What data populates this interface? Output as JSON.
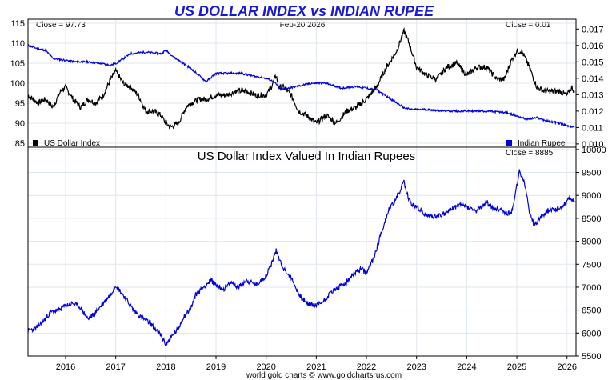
{
  "chart_data": [
    {
      "type": "line",
      "title": "US DOLLAR INDEX vs INDIAN RUPEE",
      "date_label": "Feb-20  2026",
      "left_close": "Close = 97.73",
      "right_close": "Close = 0.01",
      "left_axis": {
        "min": 84,
        "max": 116,
        "ticks": [
          85,
          90,
          95,
          100,
          105,
          110,
          115
        ]
      },
      "right_axis": {
        "min": 0.0098,
        "max": 0.0176,
        "ticks": [
          "0.010",
          "0.011",
          "0.012",
          "0.013",
          "0.014",
          "0.015",
          "0.016",
          "0.017"
        ]
      },
      "x_range": [
        2015.25,
        2026.18
      ],
      "series": [
        {
          "name": "US Dollar Index",
          "color": "#000000",
          "axis": "left",
          "x": [
            2015.25,
            2015.45,
            2015.6,
            2015.75,
            2015.9,
            2016.0,
            2016.15,
            2016.3,
            2016.45,
            2016.6,
            2016.75,
            2016.9,
            2017.0,
            2017.15,
            2017.3,
            2017.45,
            2017.6,
            2017.75,
            2017.9,
            2018.0,
            2018.1,
            2018.25,
            2018.4,
            2018.5,
            2018.65,
            2018.8,
            2019.0,
            2019.2,
            2019.4,
            2019.6,
            2019.8,
            2020.0,
            2020.1,
            2020.2,
            2020.25,
            2020.35,
            2020.5,
            2020.65,
            2020.8,
            2021.0,
            2021.2,
            2021.4,
            2021.6,
            2021.8,
            2022.0,
            2022.2,
            2022.4,
            2022.6,
            2022.75,
            2022.85,
            2023.0,
            2023.2,
            2023.4,
            2023.6,
            2023.8,
            2024.0,
            2024.2,
            2024.4,
            2024.6,
            2024.75,
            2024.9,
            2025.0,
            2025.1,
            2025.25,
            2025.4,
            2025.55,
            2025.7,
            2025.85,
            2026.0,
            2026.1,
            2026.15
          ],
          "values": [
            97,
            95,
            96,
            94,
            98,
            99,
            96,
            94,
            96,
            95,
            97,
            101,
            103,
            100,
            99,
            97,
            93,
            93,
            92,
            90,
            89,
            90,
            94,
            95,
            96,
            96,
            97,
            97,
            98,
            98,
            97,
            97,
            99,
            102,
            99,
            99,
            97,
            93,
            92,
            90,
            92,
            90,
            93,
            94,
            96,
            99,
            104,
            108,
            113,
            110,
            104,
            102,
            101,
            104,
            105,
            102,
            104,
            104,
            101,
            101,
            106,
            108,
            108,
            104,
            99,
            98,
            98,
            98,
            97,
            99,
            97.7
          ]
        },
        {
          "name": "Indian Rupee",
          "color": "#0000dd",
          "axis": "right",
          "x": [
            2015.25,
            2015.45,
            2015.6,
            2015.75,
            2016.0,
            2016.2,
            2016.45,
            2016.7,
            2016.9,
            2017.0,
            2017.3,
            2017.6,
            2017.9,
            2018.0,
            2018.2,
            2018.35,
            2018.5,
            2018.65,
            2018.8,
            2019.0,
            2019.2,
            2019.5,
            2019.8,
            2020.0,
            2020.15,
            2020.3,
            2020.6,
            2020.9,
            2021.2,
            2021.5,
            2021.8,
            2022.0,
            2022.2,
            2022.4,
            2022.6,
            2022.75,
            2022.9,
            2023.2,
            2023.6,
            2024.0,
            2024.4,
            2024.8,
            2025.0,
            2025.2,
            2025.4,
            2025.6,
            2025.8,
            2026.0,
            2026.15
          ],
          "values": [
            0.016,
            0.0158,
            0.0157,
            0.0152,
            0.0151,
            0.015,
            0.015,
            0.0149,
            0.0148,
            0.0149,
            0.0155,
            0.0156,
            0.0155,
            0.0157,
            0.0152,
            0.0149,
            0.0146,
            0.0142,
            0.0138,
            0.0143,
            0.0143,
            0.0143,
            0.0141,
            0.014,
            0.0138,
            0.0133,
            0.0135,
            0.0137,
            0.0137,
            0.0134,
            0.0135,
            0.0134,
            0.0133,
            0.0129,
            0.0125,
            0.0122,
            0.0121,
            0.0121,
            0.012,
            0.012,
            0.012,
            0.0119,
            0.0117,
            0.0115,
            0.0116,
            0.0114,
            0.0113,
            0.0111,
            0.011
          ]
        }
      ]
    },
    {
      "type": "line",
      "title": "US Dollar Index Valued In Indian Rupees",
      "right_close": "Close = 8885",
      "right_axis": {
        "min": 5500,
        "max": 10050,
        "ticks": [
          5500,
          6000,
          6500,
          7000,
          7500,
          8000,
          8500,
          9000,
          9500,
          10000
        ]
      },
      "x_range": [
        2015.25,
        2026.18
      ],
      "x_ticks": [
        "2016",
        "2017",
        "2018",
        "2019",
        "2020",
        "2021",
        "2022",
        "2023",
        "2024",
        "2025",
        "2026"
      ],
      "series": [
        {
          "name": "US Dollar Index in INR",
          "color": "#0000dd",
          "x": [
            2015.25,
            2015.4,
            2015.55,
            2015.7,
            2015.85,
            2016.0,
            2016.15,
            2016.3,
            2016.45,
            2016.6,
            2016.75,
            2016.9,
            2017.0,
            2017.1,
            2017.2,
            2017.35,
            2017.5,
            2017.7,
            2017.9,
            2018.0,
            2018.1,
            2018.25,
            2018.35,
            2018.5,
            2018.6,
            2018.75,
            2018.9,
            2019.0,
            2019.15,
            2019.3,
            2019.45,
            2019.6,
            2019.8,
            2020.0,
            2020.1,
            2020.2,
            2020.25,
            2020.35,
            2020.5,
            2020.65,
            2020.8,
            2021.0,
            2021.15,
            2021.3,
            2021.45,
            2021.6,
            2021.75,
            2021.9,
            2022.0,
            2022.15,
            2022.3,
            2022.45,
            2022.55,
            2022.65,
            2022.75,
            2022.8,
            2022.9,
            2023.0,
            2023.2,
            2023.4,
            2023.55,
            2023.7,
            2023.85,
            2024.0,
            2024.2,
            2024.4,
            2024.55,
            2024.7,
            2024.8,
            2024.9,
            2025.0,
            2025.05,
            2025.15,
            2025.25,
            2025.35,
            2025.5,
            2025.65,
            2025.8,
            2025.95,
            2026.05,
            2026.15
          ],
          "values": [
            6050,
            6100,
            6250,
            6450,
            6500,
            6600,
            6650,
            6550,
            6300,
            6450,
            6650,
            6850,
            7050,
            6900,
            6750,
            6500,
            6350,
            6200,
            5950,
            5750,
            5900,
            6100,
            6350,
            6550,
            6850,
            7000,
            7150,
            7050,
            6950,
            7100,
            7000,
            7150,
            7050,
            7250,
            7500,
            7800,
            7650,
            7400,
            7200,
            6850,
            6650,
            6600,
            6700,
            6900,
            7000,
            7100,
            7300,
            7400,
            7300,
            7650,
            8200,
            8700,
            8850,
            9050,
            9300,
            9050,
            8800,
            8750,
            8550,
            8550,
            8600,
            8700,
            8800,
            8750,
            8650,
            8850,
            8700,
            8700,
            8600,
            8650,
            9200,
            9500,
            9300,
            8650,
            8350,
            8550,
            8700,
            8700,
            8800,
            8950,
            8885
          ]
        }
      ]
    }
  ],
  "legend": {
    "usd": "US Dollar Index",
    "inr": "Indian Rupee"
  },
  "footer": "world gold charts © www.goldchartsrus.com"
}
